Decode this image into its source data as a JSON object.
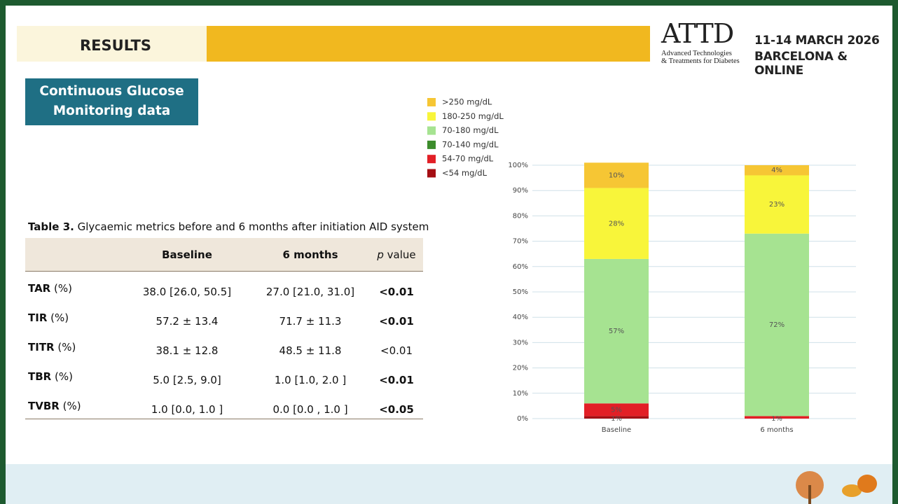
{
  "header": {
    "section": "RESULTS",
    "logo": "ATTD",
    "logo_subtitle": [
      "Advanced Technologies",
      "& Treatments for Diabetes"
    ],
    "dates": "11-14 MARCH 2026",
    "location": "BARCELONA & ONLINE"
  },
  "subheading": [
    "Continuous Glucose",
    "Monitoring data"
  ],
  "table": {
    "caption_label": "Table 3.",
    "caption": "Glycaemic metrics before and 6 months after initiation AID system",
    "columns": [
      "Baseline",
      "6 months"
    ],
    "p_column": {
      "italic": "p",
      "text": "value"
    },
    "rows": [
      {
        "label": "TAR",
        "unit": "(%)",
        "cells": [
          "38.0 [26.0, 50.5]",
          "27.0 [21.0, 31.0]",
          "<0.01"
        ],
        "p_bold": true
      },
      {
        "label": "TIR",
        "unit": "(%)",
        "cells": [
          "57.2 ± 13.4",
          "71.7 ± 11.3",
          "<0.01"
        ],
        "p_bold": true
      },
      {
        "label": "TITR",
        "unit": "(%)",
        "cells": [
          "38.1 ± 12.8",
          "48.5 ± 11.8",
          "<0.01"
        ],
        "p_bold": false
      },
      {
        "label": "TBR",
        "unit": "(%)",
        "cells": [
          "5.0  [2.5, 9.0]",
          "1.0  [1.0, 2.0 ]",
          "<0.01"
        ],
        "p_bold": true
      },
      {
        "label": "TVBR",
        "unit": "(%)",
        "cells": [
          "1.0  [0.0, 1.0 ]",
          "0.0  [0.0 , 1.0 ]",
          "<0.05"
        ],
        "p_bold": true
      }
    ]
  },
  "chart_data": {
    "type": "stacked_bar",
    "categories": [
      "Baseline",
      "6 months"
    ],
    "series": [
      {
        "name": "<54 mg/dL",
        "color": "#a50f14",
        "values": [
          1,
          0
        ],
        "value_labels": [
          "1%",
          null
        ]
      },
      {
        "name": "54-70 mg/dL",
        "color": "#e21f26",
        "values": [
          5,
          1
        ],
        "value_labels": [
          "5%",
          "1%"
        ]
      },
      {
        "name": "70-140 mg/dL",
        "color": "#3c8c2c",
        "values": [
          null,
          null
        ]
      },
      {
        "name": "70-180 mg/dL",
        "color": "#a6e391",
        "values": [
          57,
          72
        ],
        "value_labels": [
          "57%",
          "72%"
        ]
      },
      {
        "name": "180-250 mg/dL",
        "color": "#f8f53a",
        "values": [
          28,
          23
        ],
        "value_labels": [
          "28%",
          "23%"
        ]
      },
      {
        "name": ">250 mg/dL",
        "color": "#f6c634",
        "values": [
          10,
          4
        ],
        "value_labels": [
          "10%",
          "4%"
        ]
      }
    ],
    "ylim": [
      0,
      100
    ],
    "yticks": [
      {
        "value": 0,
        "label": "0%"
      },
      {
        "value": 10,
        "label": "10%"
      },
      {
        "value": 20,
        "label": "20%"
      },
      {
        "value": 30,
        "label": "30%"
      },
      {
        "value": 40,
        "label": "40%"
      },
      {
        "value": 50,
        "label": "50%"
      },
      {
        "value": 60,
        "label": "60%"
      },
      {
        "value": 70,
        "label": "70%"
      },
      {
        "value": 80,
        "label": "80%"
      },
      {
        "value": 90,
        "label": "90%"
      },
      {
        "value": 100,
        "label": "100%"
      }
    ],
    "grid": true,
    "legend": "top-left"
  }
}
